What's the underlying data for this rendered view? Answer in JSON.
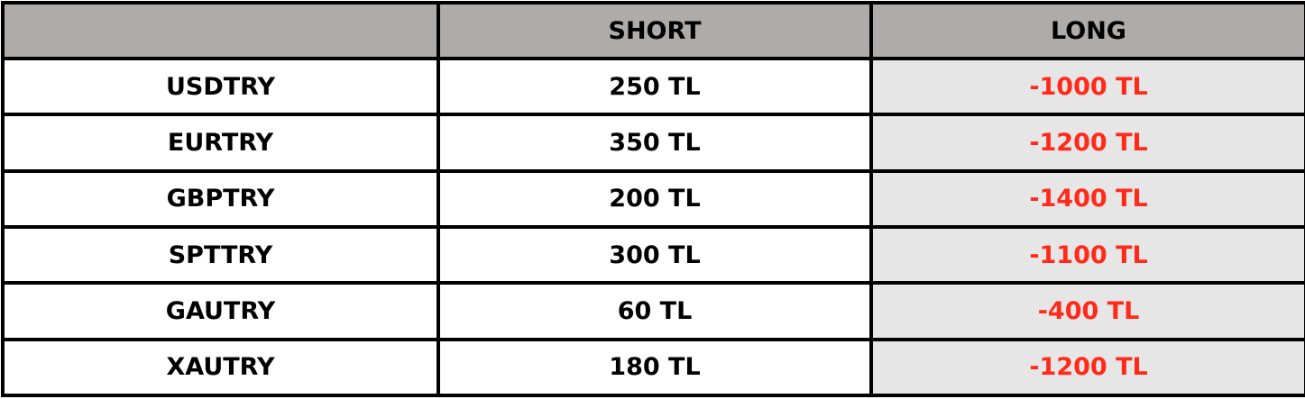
{
  "header": {
    "instrument": "",
    "short": "SHORT",
    "long": "LONG"
  },
  "colors": {
    "header_bg": "#afabaa",
    "long_bg": "#e6e6e6",
    "negative": "#ff2a1a"
  },
  "rows": [
    {
      "instrument": "USDTRY",
      "short": "250 TL",
      "long": "-1000 TL"
    },
    {
      "instrument": "EURTRY",
      "short": "350 TL",
      "long": "-1200 TL"
    },
    {
      "instrument": "GBPTRY",
      "short": "200 TL",
      "long": "-1400 TL"
    },
    {
      "instrument": "SPTTRY",
      "short": "300 TL",
      "long": "-1100 TL"
    },
    {
      "instrument": "GAUTRY",
      "short": "60 TL",
      "long": "-400 TL"
    },
    {
      "instrument": "XAUTRY",
      "short": "180 TL",
      "long": "-1200 TL"
    }
  ]
}
